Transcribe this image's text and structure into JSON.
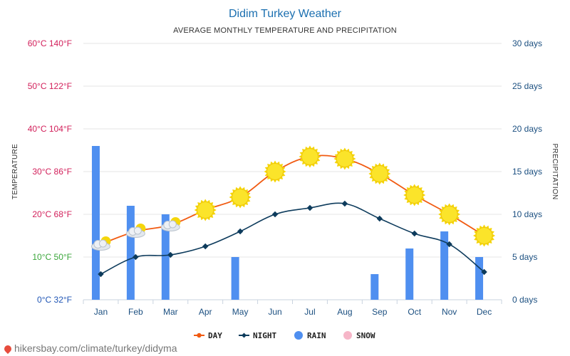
{
  "chart_data": {
    "type": "line",
    "title": "Didim Turkey Weather",
    "subtitle": "AVERAGE MONTHLY TEMPERATURE AND PRECIPITATION",
    "categories": [
      "Jan",
      "Feb",
      "Mar",
      "Apr",
      "May",
      "Jun",
      "Jul",
      "Aug",
      "Sep",
      "Oct",
      "Nov",
      "Dec"
    ],
    "left_axis": {
      "title": "TEMPERATURE",
      "range_c": [
        0,
        60
      ],
      "ticks": [
        {
          "c": 0,
          "label": "0°C 32°F",
          "color": "#1f55b5"
        },
        {
          "c": 10,
          "label": "10°C 50°F",
          "color": "#3aa63a"
        },
        {
          "c": 20,
          "label": "20°C 68°F",
          "color": "#d21f5a"
        },
        {
          "c": 30,
          "label": "30°C 86°F",
          "color": "#d21f5a"
        },
        {
          "c": 40,
          "label": "40°C 104°F",
          "color": "#d21f5a"
        },
        {
          "c": 50,
          "label": "50°C 122°F",
          "color": "#d21f5a"
        },
        {
          "c": 60,
          "label": "60°C 140°F",
          "color": "#d21f5a"
        }
      ]
    },
    "right_axis": {
      "title": "PRECIPITATION",
      "range_days": [
        0,
        30
      ],
      "ticks": [
        {
          "v": 0,
          "label": "0 days"
        },
        {
          "v": 5,
          "label": "5 days"
        },
        {
          "v": 10,
          "label": "10 days"
        },
        {
          "v": 15,
          "label": "15 days"
        },
        {
          "v": 20,
          "label": "20 days"
        },
        {
          "v": 25,
          "label": "25 days"
        },
        {
          "v": 30,
          "label": "30 days"
        }
      ]
    },
    "series": [
      {
        "name": "DAY",
        "kind": "line",
        "axis": "left",
        "color": "#f15a11",
        "values": [
          13,
          16,
          17.5,
          21,
          24,
          30,
          33.5,
          33,
          29.5,
          24.5,
          20,
          15
        ]
      },
      {
        "name": "NIGHT",
        "kind": "line",
        "axis": "left",
        "color": "#0d3b5c",
        "values": [
          6,
          10,
          10.5,
          12.5,
          16,
          20,
          21.5,
          22.5,
          19,
          15.5,
          13,
          6.5
        ]
      },
      {
        "name": "RAIN",
        "kind": "bar",
        "axis": "right",
        "color": "#4f8ff0",
        "values": [
          18,
          11,
          10,
          0,
          5,
          0,
          0,
          0,
          3,
          6,
          8,
          5
        ]
      },
      {
        "name": "SNOW",
        "kind": "bar",
        "axis": "right",
        "color": "#f6b6c8",
        "values": [
          0,
          0,
          0,
          0,
          0,
          0,
          0,
          0,
          0,
          0,
          0,
          0
        ]
      }
    ],
    "weather_icons": [
      "partly-cloudy",
      "partly-cloudy",
      "partly-cloudy",
      "sun",
      "sun",
      "sun",
      "sun",
      "sun",
      "sun",
      "sun",
      "sun",
      "sun"
    ],
    "grid": true,
    "legend_position": "bottom-center"
  },
  "footer": {
    "icon": "location-pin-icon",
    "text": "hikersbay.com/climate/turkey/didyma"
  }
}
